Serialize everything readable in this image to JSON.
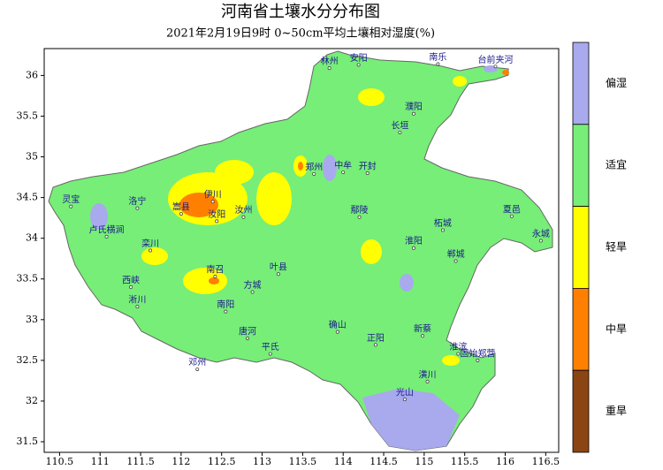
{
  "title": "河南省土壤水分分布图",
  "subtitle": "2021年2月19日9时 0~50cm平均土壤相对湿度(%)",
  "xlim": [
    110.31,
    116.66
  ],
  "ylim": [
    31.37,
    36.33
  ],
  "xticks": [
    110.5,
    111,
    111.5,
    112,
    112.5,
    113,
    113.5,
    114,
    114.5,
    115,
    115.5,
    116,
    116.5
  ],
  "yticks": [
    31.5,
    32,
    32.5,
    33,
    33.5,
    34,
    34.5,
    35,
    35.5,
    36
  ],
  "legend": [
    {
      "label": "偏湿",
      "color": "#a9a9ee"
    },
    {
      "label": "适宜",
      "color": "#77ee77"
    },
    {
      "label": "轻旱",
      "color": "#ffff00"
    },
    {
      "label": "中旱",
      "color": "#ff8000"
    },
    {
      "label": "重旱",
      "color": "#8b4513"
    }
  ],
  "stations": [
    {
      "name": "林州",
      "lon": 113.83,
      "lat": 36.09
    },
    {
      "name": "安阳",
      "lon": 114.19,
      "lat": 36.13
    },
    {
      "name": "南乐",
      "lon": 115.17,
      "lat": 36.14
    },
    {
      "name": "台前夹河",
      "lon": 115.88,
      "lat": 36.11
    },
    {
      "name": "濮阳",
      "lon": 114.87,
      "lat": 35.53
    },
    {
      "name": "长垣",
      "lon": 114.7,
      "lat": 35.3
    },
    {
      "name": "灵宝",
      "lon": 110.64,
      "lat": 34.39
    },
    {
      "name": "卢氏横涧",
      "lon": 111.08,
      "lat": 34.02
    },
    {
      "name": "洛宁",
      "lon": 111.46,
      "lat": 34.37
    },
    {
      "name": "伊川",
      "lon": 112.39,
      "lat": 34.45
    },
    {
      "name": "嵩县",
      "lon": 112.0,
      "lat": 34.3
    },
    {
      "name": "汝阳",
      "lon": 112.44,
      "lat": 34.21
    },
    {
      "name": "汝州",
      "lon": 112.77,
      "lat": 34.26
    },
    {
      "name": "郑州",
      "lon": 113.64,
      "lat": 34.79
    },
    {
      "name": "中牟",
      "lon": 114.0,
      "lat": 34.81
    },
    {
      "name": "开封",
      "lon": 114.3,
      "lat": 34.8
    },
    {
      "name": "栾川",
      "lon": 111.62,
      "lat": 33.85
    },
    {
      "name": "西峡",
      "lon": 111.38,
      "lat": 33.4
    },
    {
      "name": "淅川",
      "lon": 111.46,
      "lat": 33.16
    },
    {
      "name": "南召",
      "lon": 112.42,
      "lat": 33.53
    },
    {
      "name": "南阳",
      "lon": 112.55,
      "lat": 33.1
    },
    {
      "name": "邓州",
      "lon": 112.2,
      "lat": 32.39
    },
    {
      "name": "唐河",
      "lon": 112.82,
      "lat": 32.77
    },
    {
      "name": "平氏",
      "lon": 113.1,
      "lat": 32.58
    },
    {
      "name": "确山",
      "lon": 113.93,
      "lat": 32.85
    },
    {
      "name": "正阳",
      "lon": 114.4,
      "lat": 32.69
    },
    {
      "name": "新蔡",
      "lon": 114.98,
      "lat": 32.8
    },
    {
      "name": "淮滨",
      "lon": 115.42,
      "lat": 32.58
    },
    {
      "name": "潢川",
      "lon": 115.04,
      "lat": 32.24
    },
    {
      "name": "光山",
      "lon": 114.76,
      "lat": 32.02
    },
    {
      "name": "固始郑营",
      "lon": 115.66,
      "lat": 32.5
    },
    {
      "name": "柘城",
      "lon": 115.23,
      "lat": 34.1
    },
    {
      "name": "永城",
      "lon": 116.44,
      "lat": 33.97
    },
    {
      "name": "郸城",
      "lon": 115.39,
      "lat": 33.72
    },
    {
      "name": "淮阳",
      "lon": 114.87,
      "lat": 33.88
    },
    {
      "name": "叶县",
      "lon": 113.2,
      "lat": 33.56
    },
    {
      "name": "方城",
      "lon": 112.88,
      "lat": 33.34
    },
    {
      "name": "夏邑",
      "lon": 116.08,
      "lat": 34.27
    },
    {
      "name": "鄢陵",
      "lon": 114.2,
      "lat": 34.26
    }
  ]
}
